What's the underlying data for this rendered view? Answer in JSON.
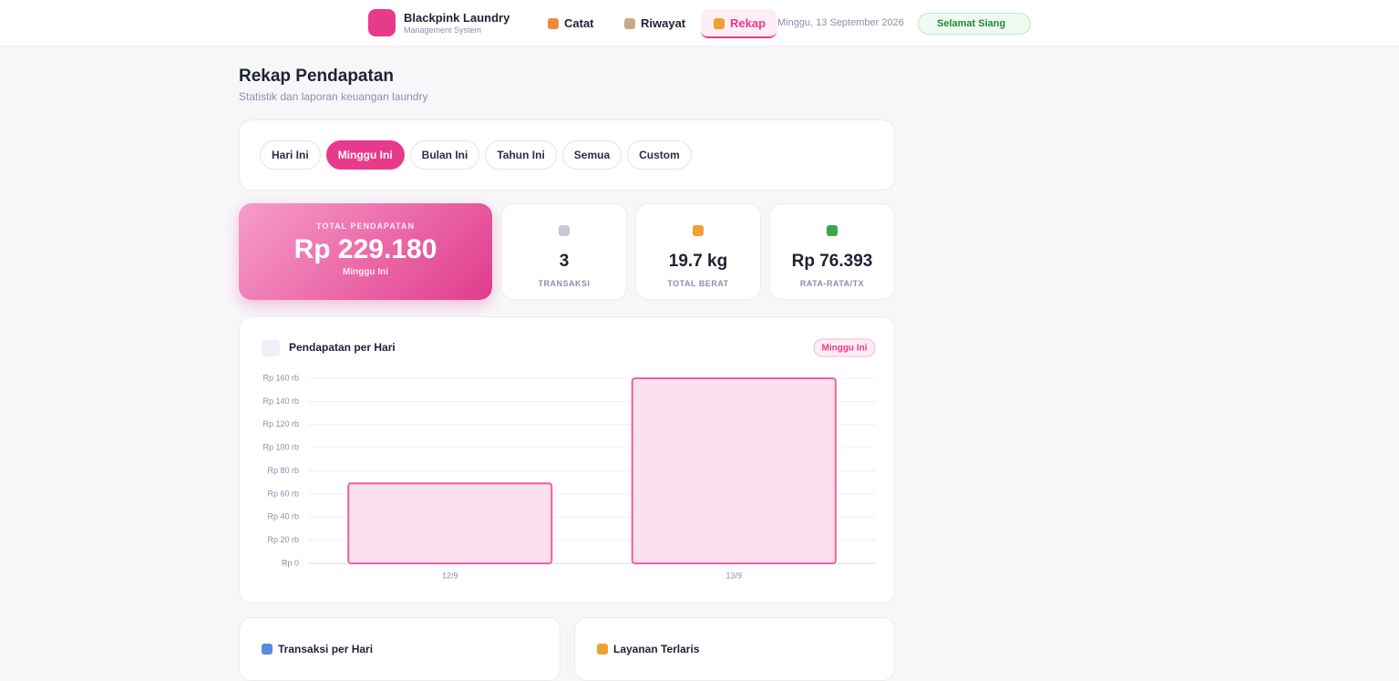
{
  "nav": {
    "brand": "Blackpink Laundry",
    "subtitle": "Management System",
    "items": [
      "Catat",
      "Riwayat",
      "Rekap"
    ],
    "date": "Minggu, 13 September 2026",
    "greeting": "Selamat Siang"
  },
  "header": {
    "title": "Rekap Pendapatan",
    "subtitle": "Statistik dan laporan keuangan laundry"
  },
  "filters": [
    "Hari Ini",
    "Minggu Ini",
    "Bulan Ini",
    "Tahun Ini",
    "Semua",
    "Custom"
  ],
  "summary": {
    "label": "TOTAL PENDAPATAN",
    "value": "Rp 229.180",
    "period": "Minggu Ini"
  },
  "stats": [
    {
      "value": "3",
      "label": "TRANSAKSI"
    },
    {
      "value": "19.7 kg",
      "label": "TOTAL BERAT"
    },
    {
      "value": "Rp 76.393",
      "label": "RATA-RATA/TX"
    }
  ],
  "chart_data": {
    "type": "bar",
    "title": "Pendapatan per Hari",
    "badge": "Minggu Ini",
    "categories": [
      "12/9",
      "13/9"
    ],
    "values": [
      69.18,
      160
    ],
    "color": "#fde0ee",
    "edge_color": "#f0609e",
    "ylim": [
      0,
      160
    ],
    "yticks": [
      {
        "value": 0,
        "label": "Rp 0"
      },
      {
        "value": 20,
        "label": "Rp 20 rb"
      },
      {
        "value": 40,
        "label": "Rp 40 rb"
      },
      {
        "value": 60,
        "label": "Rp 60 rb"
      },
      {
        "value": 80,
        "label": "Rp 80 rb"
      },
      {
        "value": 100,
        "label": "Rp 100 rb"
      },
      {
        "value": 120,
        "label": "Rp 120 rb"
      },
      {
        "value": 140,
        "label": "Rp 140 rb"
      },
      {
        "value": 160,
        "label": "Rp 160 rb"
      }
    ],
    "grid": true
  },
  "panels": [
    "Transaksi per Hari",
    "Layanan Terlaris"
  ]
}
